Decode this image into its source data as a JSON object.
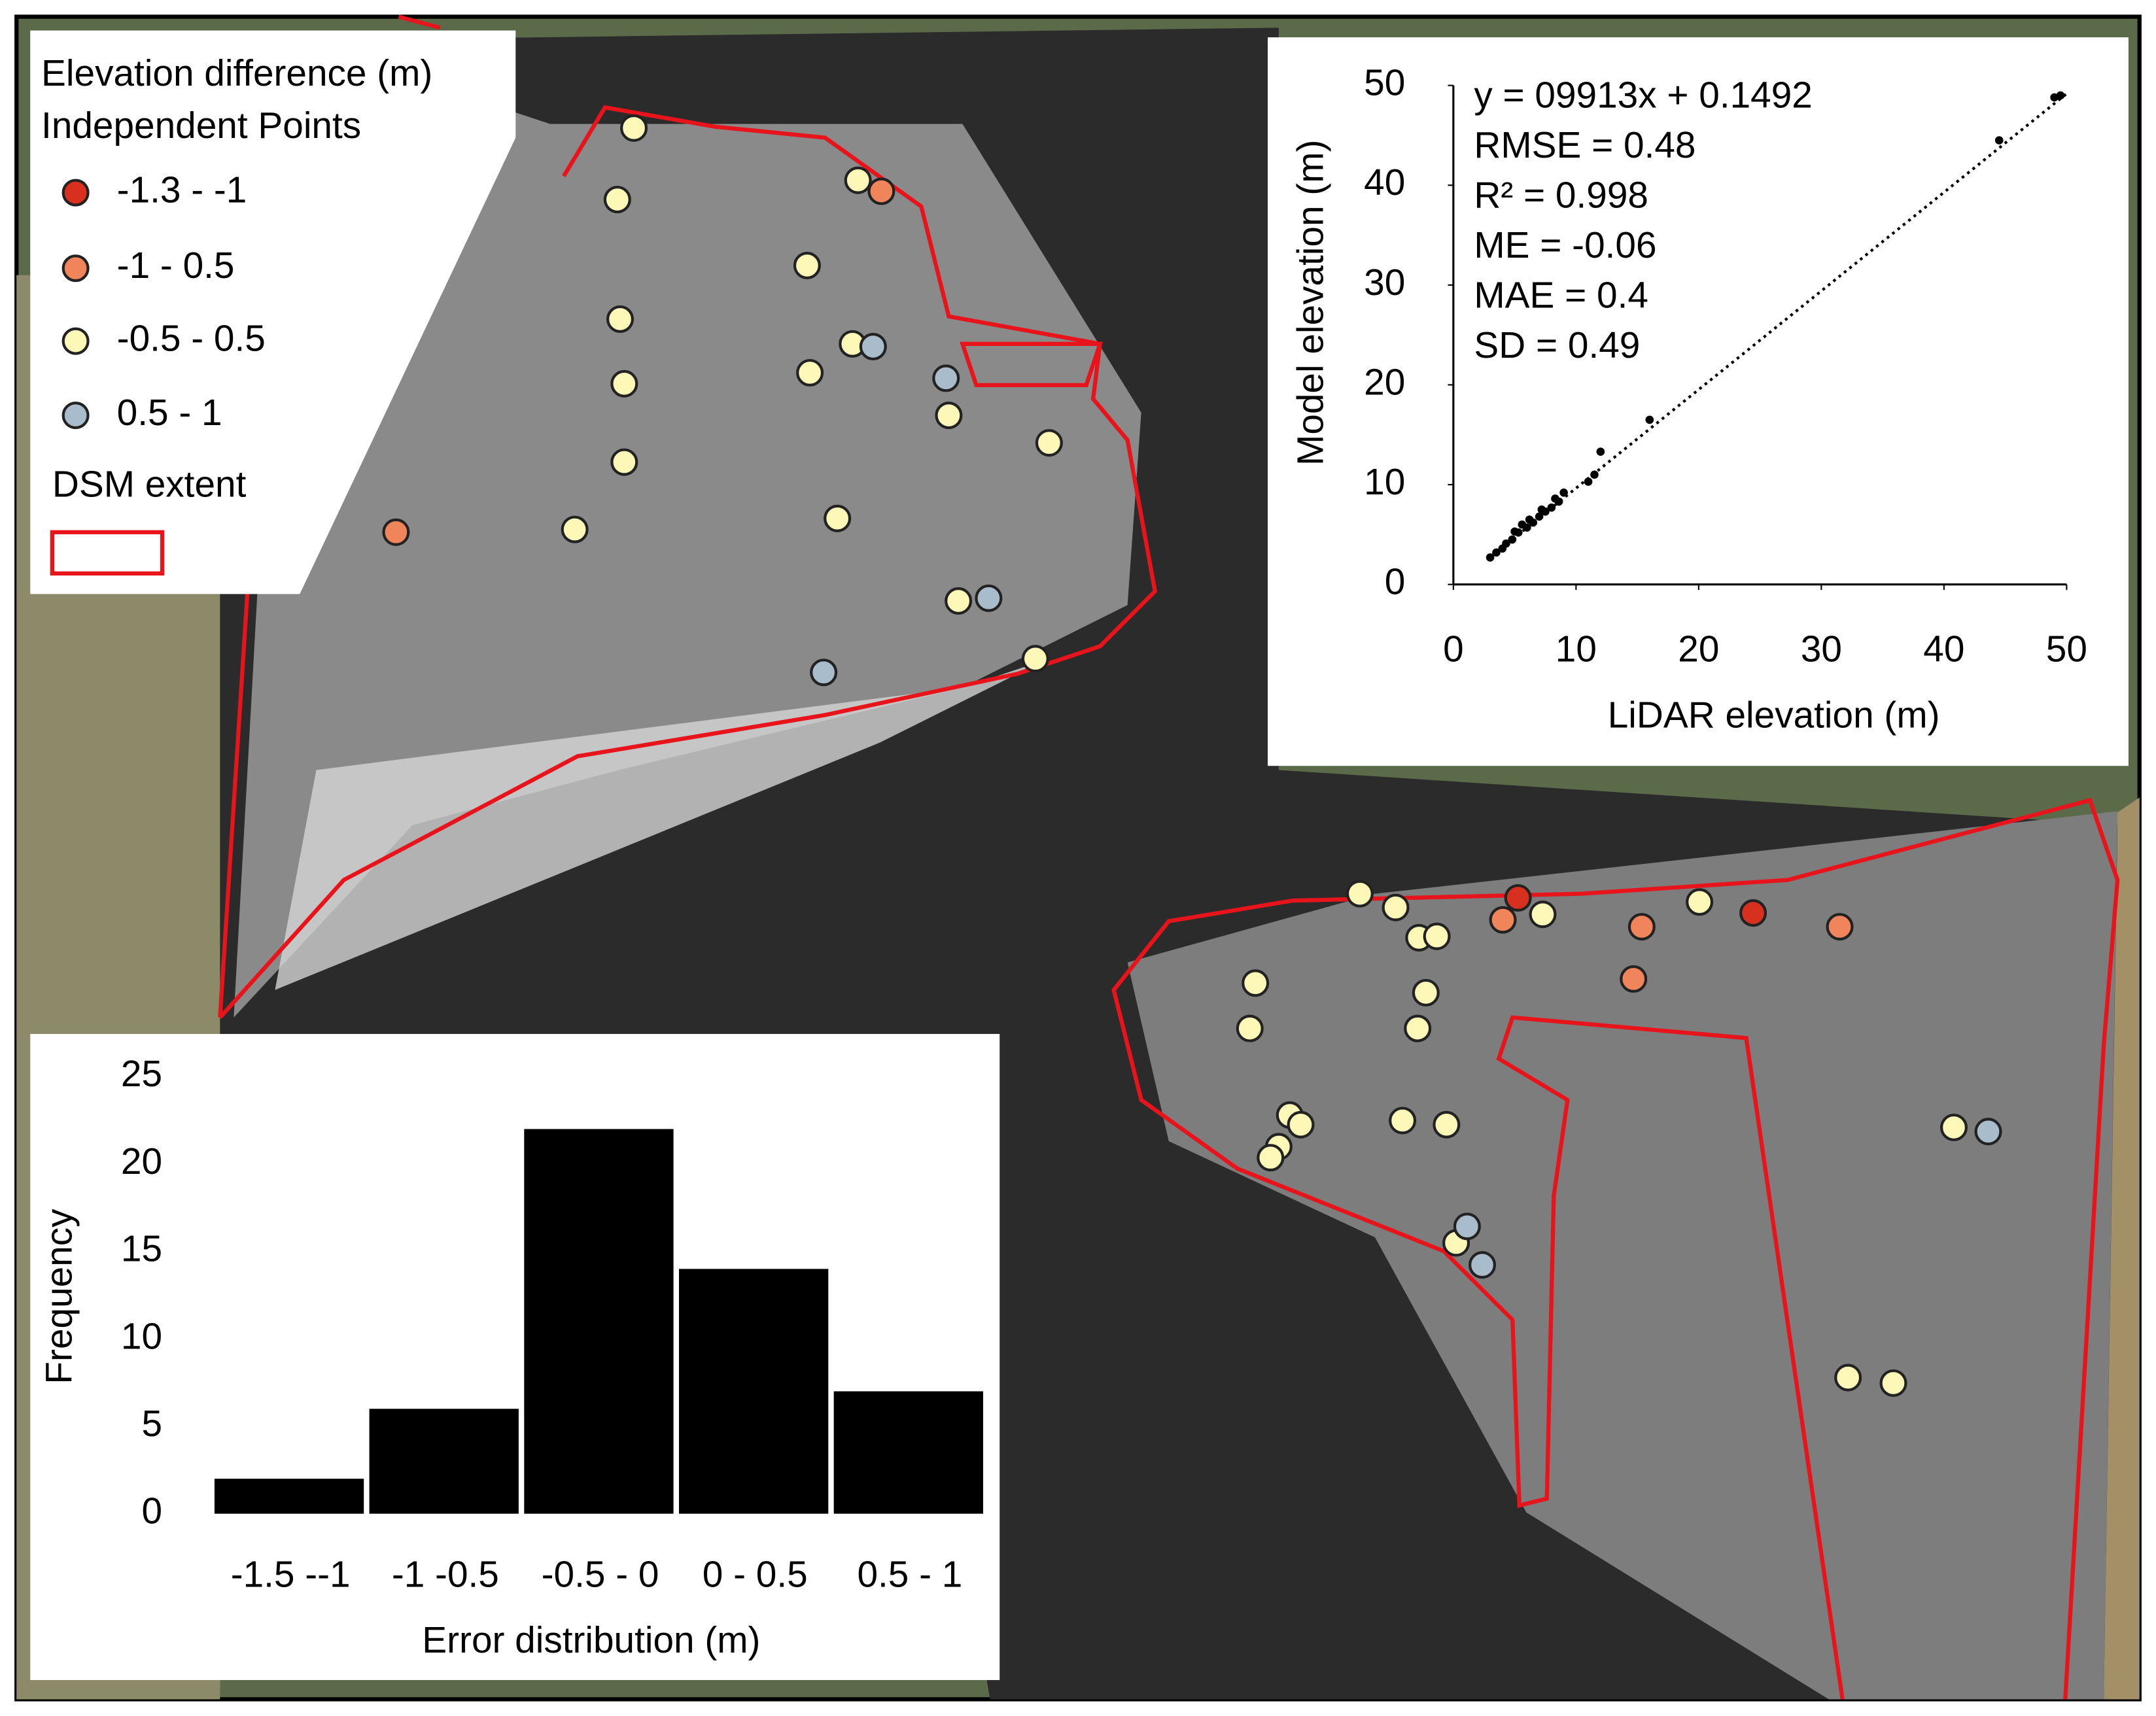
{
  "legend": {
    "title": "Elevation difference (m)",
    "subtitle": "Independent Points",
    "classes": [
      {
        "label": "-1.3 - -1",
        "color": "#d7301f"
      },
      {
        "label": "-1 - 0.5",
        "color": "#f0845a"
      },
      {
        "label": "-0.5 - 0.5",
        "color": "#fdf7b8"
      },
      {
        "label": "0.5 - 1",
        "color": "#a9bccb"
      }
    ],
    "extent_label": "DSM extent",
    "extent_color": "#e8141b"
  },
  "chart_data": [
    {
      "type": "scatter",
      "xlabel": "LiDAR elevation (m)",
      "ylabel": "Model elevation (m)",
      "annotations": [
        "y = 09913x + 0.1492",
        "RMSE = 0.48",
        "R² = 0.998",
        "ME = -0.06",
        "MAE = 0.4",
        "SD = 0.49"
      ],
      "x": [
        3,
        3.5,
        4,
        4.3,
        4.8,
        5,
        5.3,
        5.6,
        6,
        6.2,
        6.5,
        7,
        7.2,
        7.5,
        8,
        8.3,
        8.6,
        9,
        11,
        11.5,
        12,
        16,
        44.5,
        49,
        49.5
      ],
      "values": [
        2.7,
        3.2,
        3.6,
        4.1,
        4.5,
        5.3,
        5.2,
        6,
        5.7,
        6.5,
        6.2,
        6.8,
        7.5,
        7.3,
        7.7,
        8.6,
        8.3,
        9.2,
        10.3,
        11,
        13.3,
        16.5,
        44.5,
        48.8,
        49
      ],
      "color": "#000000",
      "xlim": [
        0,
        50
      ],
      "ylim": [
        0,
        50
      ],
      "xticks": [
        0,
        10,
        20,
        30,
        40,
        50
      ],
      "yticks": [
        0,
        10,
        20,
        30,
        40,
        50
      ]
    },
    {
      "type": "bar",
      "xlabel": "Error distribution (m)",
      "ylabel": "Frequency",
      "categories": [
        "-1.5 --1",
        "-1 -0.5",
        "-0.5 - 0",
        "0 - 0.5",
        "0.5 - 1"
      ],
      "values": [
        2,
        6,
        22,
        14,
        7
      ],
      "color": "#000000",
      "ylim": [
        0,
        25
      ],
      "yticks": [
        0,
        5,
        10,
        15,
        20,
        25
      ]
    }
  ]
}
